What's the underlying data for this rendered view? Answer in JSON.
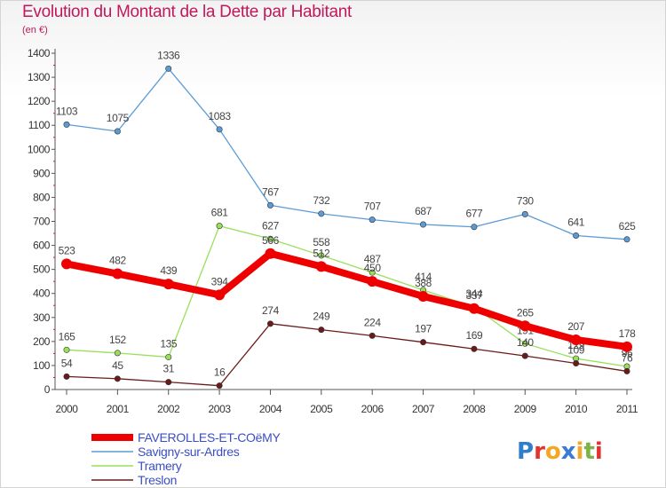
{
  "title": "Evolution du Montant de la Dette par Habitant",
  "unit_label": "(en €)",
  "logo": {
    "letters": [
      "P",
      "r",
      "o",
      "x",
      "i",
      "t",
      "i"
    ],
    "colors": [
      "#2f80c8",
      "#e2332f",
      "#f5a623",
      "#3a7bd5",
      "#f5a623",
      "#7cb342",
      "#e2332f"
    ]
  },
  "chart_data": {
    "type": "line",
    "title": "Evolution du Montant de la Dette par Habitant",
    "ylabel": "(en €)",
    "xlabel": "",
    "x": [
      "2000",
      "2001",
      "2002",
      "2003",
      "2004",
      "2005",
      "2006",
      "2007",
      "2008",
      "2009",
      "2010",
      "2011"
    ],
    "ylim": [
      0,
      1400
    ],
    "yticks": [
      0,
      100,
      200,
      300,
      400,
      500,
      600,
      700,
      800,
      900,
      1000,
      1100,
      1200,
      1300,
      1400
    ],
    "grid": false,
    "legend_position": "bottom-left",
    "series": [
      {
        "name": "Savigny-sur-Ardres",
        "color": "#5b9bd5",
        "values": [
          1103,
          1075,
          1336,
          1083,
          767,
          732,
          707,
          687,
          677,
          730,
          641,
          625
        ],
        "labels": [
          "1103",
          "1075",
          "1336",
          "1083",
          "767",
          "732",
          "707",
          "687",
          "677",
          "730",
          "641",
          "625"
        ]
      },
      {
        "name": "Tramery",
        "color": "#99e05a",
        "values": [
          165,
          152,
          135,
          681,
          627,
          558,
          487,
          414,
          344,
          191,
          129,
          96
        ],
        "labels": [
          "165",
          "152",
          "135",
          "681",
          "627",
          "558",
          "487",
          "414",
          "344",
          "191",
          "129",
          "96"
        ]
      },
      {
        "name": "Treslon",
        "color": "#6b1a1a",
        "values": [
          54,
          45,
          31,
          16,
          274,
          249,
          224,
          197,
          169,
          140,
          109,
          76
        ],
        "labels": [
          "54",
          "45",
          "31",
          "16",
          "274",
          "249",
          "224",
          "197",
          "169",
          "140",
          "109",
          "76"
        ]
      },
      {
        "name": "FAVEROLLES-ET-COëMY",
        "color": "#ee0000",
        "values": [
          523,
          482,
          439,
          394,
          566,
          512,
          450,
          388,
          337,
          265,
          207,
          178
        ],
        "labels": [
          "523",
          "482",
          "439",
          "394",
          "566",
          "512",
          "450",
          "388",
          "337",
          "265",
          "207",
          "178"
        ],
        "highlight": true
      }
    ],
    "legend_order": [
      "FAVEROLLES-ET-COëMY",
      "Savigny-sur-Ardres",
      "Tramery",
      "Treslon"
    ]
  }
}
